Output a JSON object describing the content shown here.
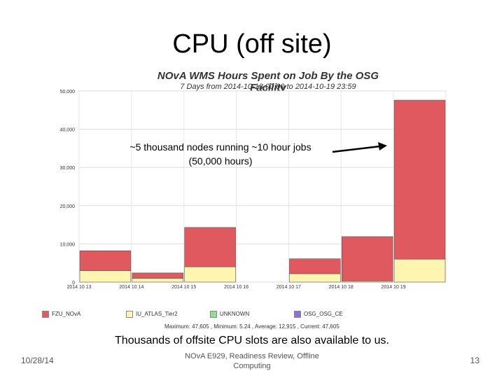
{
  "slide": {
    "title": "CPU (off site)",
    "annotation_line1": "~5 thousand nodes running ~10 hour jobs",
    "annotation_line2": "(50,000 hours)",
    "caption": "Thousands of offsite CPU slots are also available to us.",
    "footer_date": "10/28/14",
    "footer_center_line1": "NOvA E929, Readiness Review, Offline",
    "footer_center_line2": "Computing",
    "page_number": "13"
  },
  "chart_data": {
    "type": "bar",
    "stacked": true,
    "title": "NOvA WMS Hours Spent on Job By the OSG Facility",
    "subtitle": "7 Days from 2014-10-13 00:00 to 2014-10-19 23:59",
    "categories": [
      "2014-10-13",
      "2014-10-14",
      "2014-10-15",
      "2014-10-16",
      "2014-10-17",
      "2014-10-18",
      "2014-10-19"
    ],
    "x_ticks": [
      "2014 10 13",
      "2014 10 14",
      "2014 10 15",
      "2014 10 16",
      "2014 10 17",
      "2014 10 18",
      "2014 10 19"
    ],
    "y_ticks": [
      "0",
      "10,000",
      "20,000",
      "30,000",
      "40,000",
      "50,000"
    ],
    "ylim": [
      0,
      50000
    ],
    "grid": true,
    "series": [
      {
        "name": "IU_ATLAS_Tier2",
        "color": "#fdf5b0",
        "values": [
          3000,
          1000,
          4000,
          0,
          2200,
          300,
          6000
        ]
      },
      {
        "name": "FZU_NOvA",
        "color": "#e0595f",
        "values": [
          5200,
          1400,
          10300,
          0,
          3900,
          11600,
          41600
        ]
      },
      {
        "name": "UNKNOWN",
        "color": "#8ee08e",
        "values": [
          0,
          0,
          0,
          0,
          0,
          0,
          0
        ]
      },
      {
        "name": "OSG_OSG_CE",
        "color": "#8e6ed8",
        "values": [
          0,
          0,
          0,
          0,
          0,
          0,
          0
        ]
      }
    ],
    "legend": [
      {
        "name": "FZU_NOvA",
        "color": "#e0595f"
      },
      {
        "name": "IU_ATLAS_Tier2",
        "color": "#fdf5b0"
      },
      {
        "name": "UNKNOWN",
        "color": "#8ee08e"
      },
      {
        "name": "OSG_OSG_CE",
        "color": "#8e6ed8"
      }
    ],
    "legend_placement": "bottom",
    "stats_text": "Maximum: 47,605 , Minimum: 5.24 , Average: 12,915 , Current: 47,605"
  }
}
